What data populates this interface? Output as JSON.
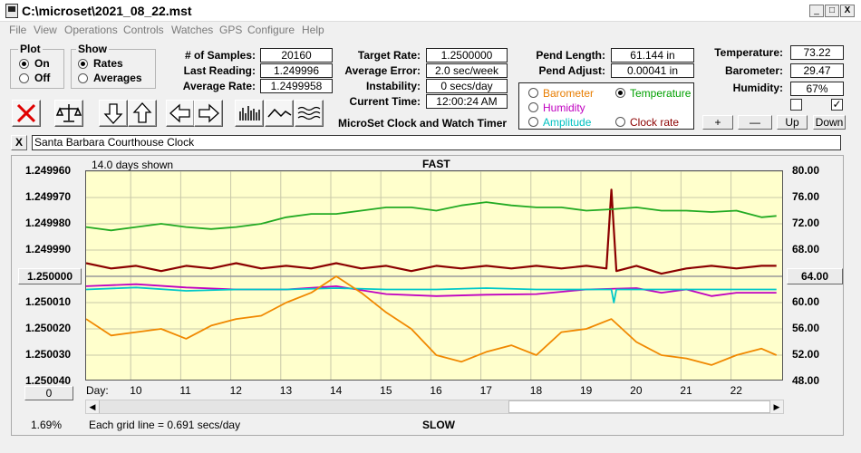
{
  "window": {
    "title": "C:\\microset\\2021_08_22.mst",
    "minimize": "_",
    "maximize": "□",
    "close": "X"
  },
  "menu": [
    "File",
    "View",
    "Operations",
    "Controls",
    "Watches",
    "GPS",
    "Configure",
    "Help"
  ],
  "plot_group": {
    "label": "Plot",
    "options": [
      {
        "label": "On",
        "selected": true
      },
      {
        "label": "Off",
        "selected": false
      }
    ]
  },
  "show_group": {
    "label": "Show",
    "options": [
      {
        "label": "Rates",
        "selected": true
      },
      {
        "label": "Averages",
        "selected": false
      }
    ]
  },
  "fields_col1": [
    {
      "label": "# of Samples:",
      "value": "20160"
    },
    {
      "label": "Last Reading:",
      "value": "1.249996"
    },
    {
      "label": "Average Rate:",
      "value": "1.2499958"
    }
  ],
  "fields_col2": [
    {
      "label": "Target Rate:",
      "value": "1.2500000"
    },
    {
      "label": "Average Error:",
      "value": "2.0 sec/week"
    },
    {
      "label": "Instability:",
      "value": "0 secs/day"
    },
    {
      "label": "Current Time:",
      "value": "12:00:24 AM"
    }
  ],
  "app_caption": "MicroSet Clock and Watch Timer",
  "fields_col3": [
    {
      "label": "Pend Length:",
      "value": "61.144 in"
    },
    {
      "label": "Pend Adjust:",
      "value": "0.00041 in"
    }
  ],
  "sensor_options": [
    {
      "label": "Barometer",
      "color": "#e87d00",
      "selected": false
    },
    {
      "label": "Temperature",
      "color": "#00a000",
      "selected": true
    },
    {
      "label": "Humidity",
      "color": "#c000c0",
      "selected": false
    },
    {
      "label": "Clock rate",
      "color": "#8b0000",
      "selected": false
    },
    {
      "label": "Amplitude",
      "color": "#00c0c0",
      "selected": false
    }
  ],
  "fields_col4": [
    {
      "label": "Temperature:",
      "value": "73.22"
    },
    {
      "label": "Barometer:",
      "value": "29.47"
    },
    {
      "label": "Humidity:",
      "value": "67%"
    }
  ],
  "checkboxes": [
    {
      "checked": false
    },
    {
      "checked": true
    }
  ],
  "small_buttons": [
    "+",
    "—",
    "Up",
    "Down"
  ],
  "toolbar_icons": [
    "cancel-icon",
    "balance-scale-icon",
    "arrow-down-icon",
    "arrow-up-icon",
    "arrow-left-icon",
    "arrow-right-icon",
    "bar-chart-icon",
    "line-wave-icon",
    "multi-wave-icon"
  ],
  "description_close": "X",
  "description": "Santa Barbara Courthouse Clock",
  "chart_header": {
    "days_shown": "14.0 days shown",
    "top_label": "FAST",
    "bottom_label": "SLOW"
  },
  "left_value_button": "1.250000",
  "right_value_button": "64.00",
  "zero_button": "0",
  "footer": {
    "percent": "1.69%",
    "grid_note": "Each grid line = 0.691 secs/day"
  },
  "chart_data": {
    "type": "line",
    "x_label": "Day:",
    "x_ticks": [
      10,
      11,
      12,
      13,
      14,
      15,
      16,
      17,
      18,
      19,
      20,
      21,
      22
    ],
    "xlim": [
      9,
      22.95
    ],
    "y_left_ticks": [
      "1.249960",
      "1.249970",
      "1.249980",
      "1.249990",
      "1.250000",
      "1.250010",
      "1.250020",
      "1.250030",
      "1.250040"
    ],
    "y_left_range": [
      1.24996,
      1.25004
    ],
    "y_right_ticks": [
      "80.00",
      "76.00",
      "72.00",
      "68.00",
      "64.00",
      "60.00",
      "56.00",
      "52.00",
      "48.00"
    ],
    "y_right_range": [
      80,
      48
    ],
    "reference_line": 1.25,
    "series": [
      {
        "color": "#8b0000",
        "axis": "left",
        "x": [
          9,
          9.5,
          10,
          10.5,
          11,
          11.5,
          12,
          12.5,
          13,
          13.5,
          14,
          14.5,
          15,
          15.5,
          16,
          16.5,
          17,
          17.5,
          18,
          18.5,
          19,
          19.4,
          19.5,
          19.6,
          20,
          20.5,
          21,
          21.5,
          22,
          22.5,
          22.8
        ],
        "y": [
          1.249995,
          1.249997,
          1.249996,
          1.249998,
          1.249996,
          1.249997,
          1.249995,
          1.249997,
          1.249996,
          1.249997,
          1.249995,
          1.249997,
          1.249996,
          1.249998,
          1.249996,
          1.249997,
          1.249996,
          1.249997,
          1.249996,
          1.249997,
          1.249996,
          1.249997,
          1.249967,
          1.249998,
          1.249996,
          1.249999,
          1.249997,
          1.249996,
          1.249997,
          1.249996,
          1.249996
        ]
      },
      {
        "color": "#22aa22",
        "axis": "right",
        "x": [
          9,
          9.5,
          10,
          10.5,
          11,
          11.5,
          12,
          12.5,
          13,
          13.5,
          14,
          14.5,
          15,
          15.5,
          16,
          16.5,
          17,
          17.5,
          18,
          18.5,
          19,
          19.5,
          20,
          20.5,
          21,
          21.5,
          22,
          22.5,
          22.8
        ],
        "y": [
          71.5,
          71.0,
          71.5,
          72.0,
          71.5,
          71.2,
          71.5,
          72.0,
          73.0,
          73.5,
          73.5,
          74.0,
          74.5,
          74.5,
          74.0,
          74.8,
          75.3,
          74.8,
          74.5,
          74.5,
          74.0,
          74.2,
          74.5,
          74.0,
          74.0,
          73.8,
          74.0,
          73.0,
          73.2
        ]
      },
      {
        "color": "#c000c0",
        "axis": "right",
        "x": [
          9,
          10,
          11,
          12,
          13,
          14,
          15,
          16,
          17,
          18,
          19,
          20,
          20.5,
          21,
          21.5,
          22,
          22.8
        ],
        "y": [
          62.5,
          62.8,
          62.3,
          62.0,
          62.0,
          62.5,
          61.3,
          61.0,
          61.2,
          61.3,
          62.0,
          62.2,
          61.5,
          62.0,
          61.0,
          61.5,
          61.5
        ]
      },
      {
        "color": "#00c8c8",
        "axis": "right",
        "x": [
          9,
          10,
          11,
          12,
          13,
          14,
          15,
          16,
          17,
          18,
          19,
          19.5,
          19.55,
          19.6,
          20,
          21,
          22,
          22.8
        ],
        "y": [
          62.0,
          62.3,
          61.8,
          62.0,
          62.0,
          62.2,
          62.0,
          62.0,
          62.2,
          62.0,
          62.0,
          62.0,
          60.0,
          62.0,
          62.0,
          62.0,
          62.0,
          62.0
        ]
      },
      {
        "color": "#f08800",
        "axis": "right",
        "x": [
          9,
          9.5,
          10,
          10.5,
          11,
          11.5,
          12,
          12.5,
          13,
          13.5,
          14,
          14.5,
          15,
          15.5,
          16,
          16.5,
          17,
          17.5,
          18,
          18.5,
          19,
          19.5,
          20,
          20.5,
          21,
          21.5,
          22,
          22.5,
          22.8
        ],
        "y": [
          57.5,
          55.0,
          55.5,
          56.0,
          54.5,
          56.5,
          57.5,
          58.0,
          60.0,
          61.5,
          64.0,
          61.5,
          58.5,
          56.0,
          52.0,
          51.0,
          52.5,
          53.5,
          52.0,
          55.5,
          56.0,
          57.5,
          54.0,
          52.0,
          51.5,
          50.5,
          52.0,
          53.0,
          52.0
        ]
      }
    ]
  }
}
